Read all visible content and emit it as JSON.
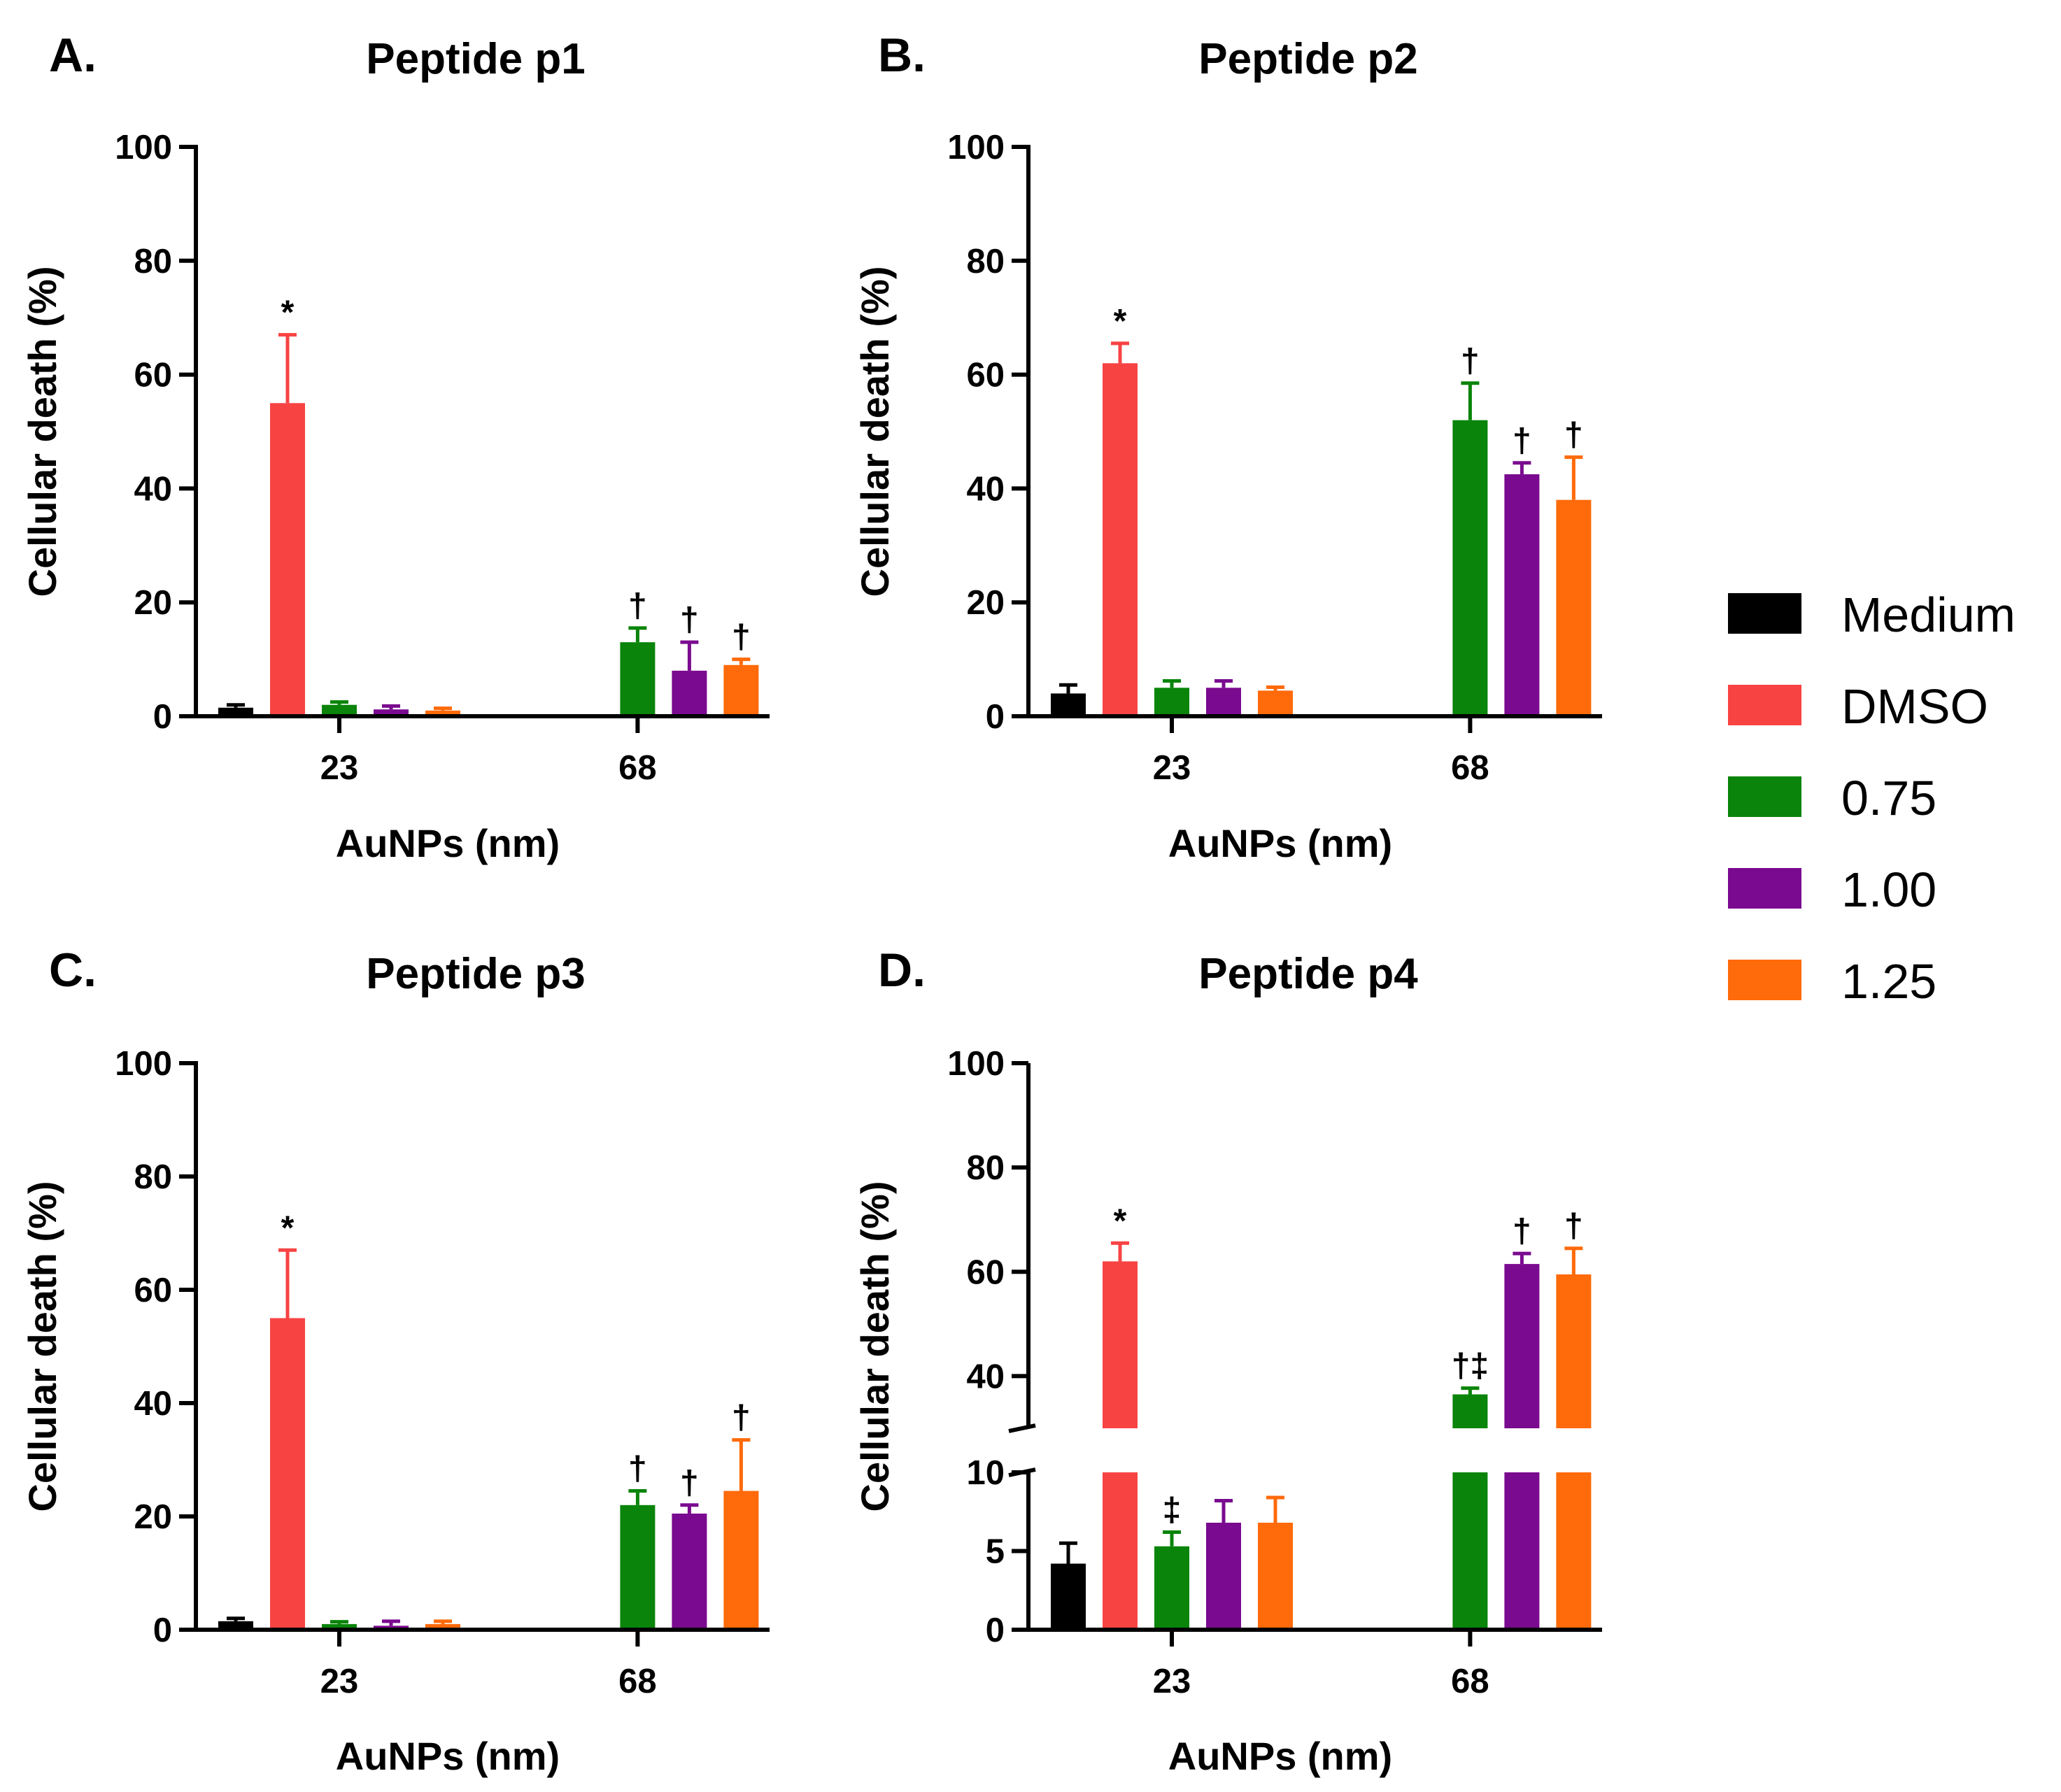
{
  "legend": [
    {
      "label": "Medium",
      "color": "#000000"
    },
    {
      "label": "DMSO",
      "color": "#f84343"
    },
    {
      "label": "0.75",
      "color": "#0a840a"
    },
    {
      "label": "1.00",
      "color": "#7a0a8f"
    },
    {
      "label": "1.25",
      "color": "#ff6a0a"
    }
  ],
  "chart_data": [
    {
      "type": "bar",
      "letter": "A.",
      "title": "Peptide p1",
      "xlabel": "AuNPs (nm)",
      "ylabel": "Cellular death (%)",
      "ylim": [
        0,
        100
      ],
      "yticks": [
        0,
        20,
        40,
        60,
        80,
        100
      ],
      "categories": [
        "23",
        "68"
      ],
      "series": [
        {
          "name": "Medium",
          "values": [
            1.5,
            null
          ],
          "errors": [
            0.5,
            null
          ],
          "annotations": [
            "",
            ""
          ]
        },
        {
          "name": "DMSO",
          "values": [
            55,
            null
          ],
          "errors": [
            12,
            null
          ],
          "annotations": [
            "*",
            ""
          ]
        },
        {
          "name": "0.75",
          "values": [
            2,
            13
          ],
          "errors": [
            0.5,
            2.5
          ],
          "annotations": [
            "",
            "†"
          ]
        },
        {
          "name": "1.00",
          "values": [
            1.2,
            8
          ],
          "errors": [
            0.6,
            5
          ],
          "annotations": [
            "",
            "†"
          ]
        },
        {
          "name": "1.25",
          "values": [
            1,
            9
          ],
          "errors": [
            0.4,
            1
          ],
          "annotations": [
            "",
            "†"
          ]
        }
      ]
    },
    {
      "type": "bar",
      "letter": "B.",
      "title": "Peptide p2",
      "xlabel": "AuNPs (nm)",
      "ylabel": "Cellular death (%)",
      "ylim": [
        0,
        100
      ],
      "yticks": [
        0,
        20,
        40,
        60,
        80,
        100
      ],
      "categories": [
        "23",
        "68"
      ],
      "series": [
        {
          "name": "Medium",
          "values": [
            4,
            null
          ],
          "errors": [
            1.5,
            null
          ],
          "annotations": [
            "",
            ""
          ]
        },
        {
          "name": "DMSO",
          "values": [
            62,
            null
          ],
          "errors": [
            3.5,
            null
          ],
          "annotations": [
            "*",
            ""
          ]
        },
        {
          "name": "0.75",
          "values": [
            5,
            52
          ],
          "errors": [
            1.2,
            6.5
          ],
          "annotations": [
            "",
            "†"
          ]
        },
        {
          "name": "1.00",
          "values": [
            5,
            42.5
          ],
          "errors": [
            1.2,
            2
          ],
          "annotations": [
            "",
            "†"
          ]
        },
        {
          "name": "1.25",
          "values": [
            4.5,
            38
          ],
          "errors": [
            0.6,
            7.5
          ],
          "annotations": [
            "",
            "†"
          ]
        }
      ]
    },
    {
      "type": "bar",
      "letter": "C.",
      "title": "Peptide p3",
      "xlabel": "AuNPs (nm)",
      "ylabel": "Cellular death (%)",
      "ylim": [
        0,
        100
      ],
      "yticks": [
        0,
        20,
        40,
        60,
        80,
        100
      ],
      "categories": [
        "23",
        "68"
      ],
      "series": [
        {
          "name": "Medium",
          "values": [
            1.5,
            null
          ],
          "errors": [
            0.5,
            null
          ],
          "annotations": [
            "",
            ""
          ]
        },
        {
          "name": "DMSO",
          "values": [
            55,
            null
          ],
          "errors": [
            12,
            null
          ],
          "annotations": [
            "*",
            ""
          ]
        },
        {
          "name": "0.75",
          "values": [
            1,
            22
          ],
          "errors": [
            0.4,
            2.5
          ],
          "annotations": [
            "",
            "†"
          ]
        },
        {
          "name": "1.00",
          "values": [
            0.7,
            20.5
          ],
          "errors": [
            0.8,
            1.5
          ],
          "annotations": [
            "",
            "†"
          ]
        },
        {
          "name": "1.25",
          "values": [
            1,
            24.5
          ],
          "errors": [
            0.5,
            9
          ],
          "annotations": [
            "",
            "†"
          ]
        }
      ]
    },
    {
      "type": "bar",
      "letter": "D.",
      "title": "Peptide p4",
      "xlabel": "AuNPs (nm)",
      "ylabel": "Cellular death (%)",
      "broken_axis": {
        "lower": {
          "ylim": [
            0,
            10
          ],
          "yticks": [
            0,
            5,
            10
          ]
        },
        "upper": {
          "ylim": [
            30,
            100
          ],
          "yticks": [
            40,
            60,
            80,
            100
          ]
        }
      },
      "categories": [
        "23",
        "68"
      ],
      "series": [
        {
          "name": "Medium",
          "values": [
            4.2,
            null
          ],
          "errors": [
            1.3,
            null
          ],
          "annotations": [
            "",
            ""
          ]
        },
        {
          "name": "DMSO",
          "values": [
            62,
            null
          ],
          "errors": [
            3.5,
            null
          ],
          "annotations": [
            "*",
            ""
          ]
        },
        {
          "name": "0.75",
          "values": [
            5.3,
            36.5
          ],
          "errors": [
            0.9,
            1.2
          ],
          "annotations": [
            "‡",
            "†‡"
          ]
        },
        {
          "name": "1.00",
          "values": [
            6.8,
            61.5
          ],
          "errors": [
            1.4,
            2
          ],
          "annotations": [
            "",
            "†"
          ]
        },
        {
          "name": "1.25",
          "values": [
            6.8,
            59.5
          ],
          "errors": [
            1.6,
            5
          ],
          "annotations": [
            "",
            "†"
          ]
        }
      ]
    }
  ]
}
